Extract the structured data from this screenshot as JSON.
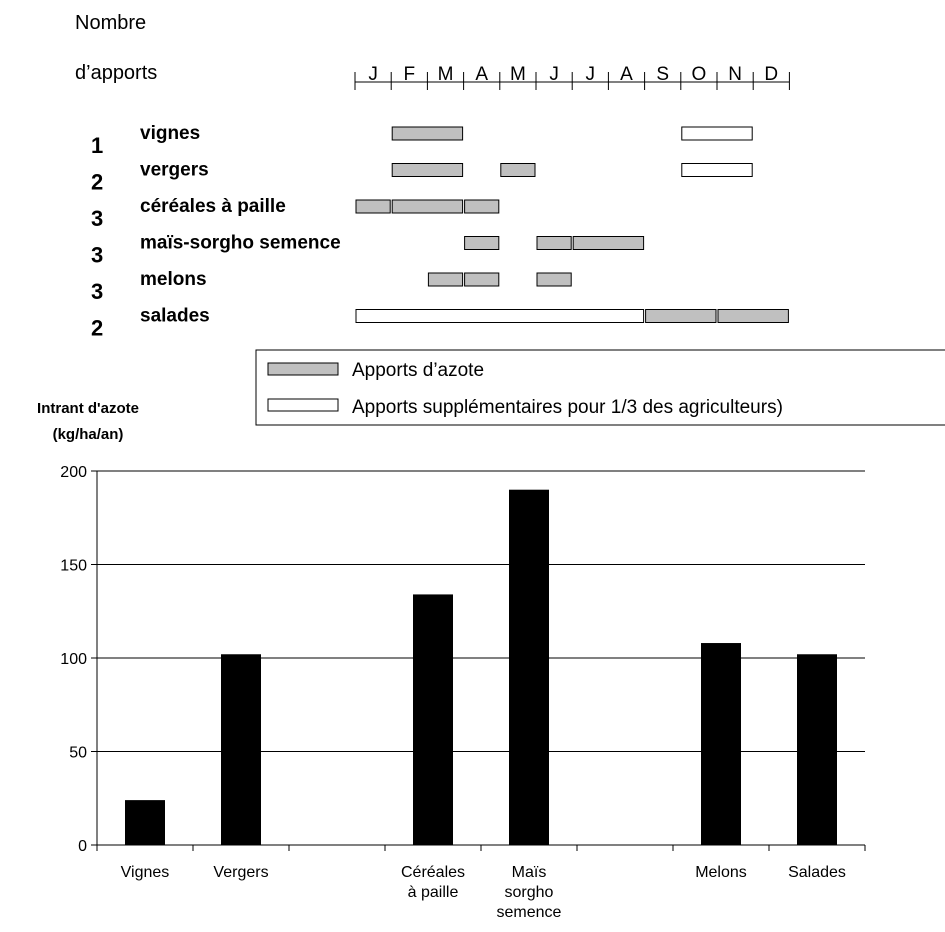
{
  "schedule": {
    "header_line1": "Nombre",
    "header_line2": "d’apports",
    "months": [
      "J",
      "F",
      "M",
      "A",
      "M",
      "J",
      "J",
      "A",
      "S",
      "O",
      "N",
      "D"
    ],
    "rows": [
      {
        "count": "1",
        "crop": "vignes",
        "segments": [
          {
            "start": 1,
            "end": 3,
            "kind": "azote"
          },
          {
            "start": 9,
            "end": 11,
            "kind": "supp"
          }
        ]
      },
      {
        "count": "2",
        "crop": "vergers",
        "segments": [
          {
            "start": 1,
            "end": 3,
            "kind": "azote"
          },
          {
            "start": 4,
            "end": 5,
            "kind": "azote"
          },
          {
            "start": 9,
            "end": 11,
            "kind": "supp"
          }
        ]
      },
      {
        "count": "3",
        "crop": "céréales à paille",
        "segments": [
          {
            "start": 0,
            "end": 1,
            "kind": "azote"
          },
          {
            "start": 1,
            "end": 3,
            "kind": "azote"
          },
          {
            "start": 3,
            "end": 4,
            "kind": "azote"
          }
        ]
      },
      {
        "count": "3",
        "crop": "maïs-sorgho semence",
        "segments": [
          {
            "start": 3,
            "end": 4,
            "kind": "azote"
          },
          {
            "start": 5,
            "end": 6,
            "kind": "azote"
          },
          {
            "start": 6,
            "end": 8,
            "kind": "azote"
          }
        ]
      },
      {
        "count": "3",
        "crop": "melons",
        "segments": [
          {
            "start": 2,
            "end": 3,
            "kind": "azote"
          },
          {
            "start": 3,
            "end": 4,
            "kind": "azote"
          },
          {
            "start": 5,
            "end": 6,
            "kind": "azote"
          }
        ]
      },
      {
        "count": "2",
        "crop": "salades",
        "segments": [
          {
            "start": 0,
            "end": 8,
            "kind": "supp"
          },
          {
            "start": 8,
            "end": 10,
            "kind": "azote"
          },
          {
            "start": 10,
            "end": 12,
            "kind": "azote"
          }
        ]
      }
    ]
  },
  "legend": {
    "azote_label": "Apports d’azote",
    "supp_label": "Apports supplémentaires pour 1/3 des agriculteurs)"
  },
  "colors": {
    "azote_fill": "#c0c0c0",
    "supp_fill": "#ffffff",
    "bar_fill": "#000000",
    "grid": "#000000"
  },
  "chart_data": {
    "type": "bar",
    "ylabel_line1": "Intrant d'azote",
    "ylabel_line2": "(kg/ha/an)",
    "ylim": [
      0,
      200
    ],
    "yticks": [
      0,
      50,
      100,
      150,
      200
    ],
    "grid": true,
    "categories": [
      [
        "Vignes"
      ],
      [
        "Vergers"
      ],
      [],
      [
        "Céréales",
        "à paille"
      ],
      [
        "Maïs",
        "sorgho",
        "semence"
      ],
      [],
      [
        "Melons"
      ],
      [
        "Salades"
      ]
    ],
    "values": [
      24,
      102,
      null,
      134,
      190,
      null,
      108,
      102
    ]
  }
}
